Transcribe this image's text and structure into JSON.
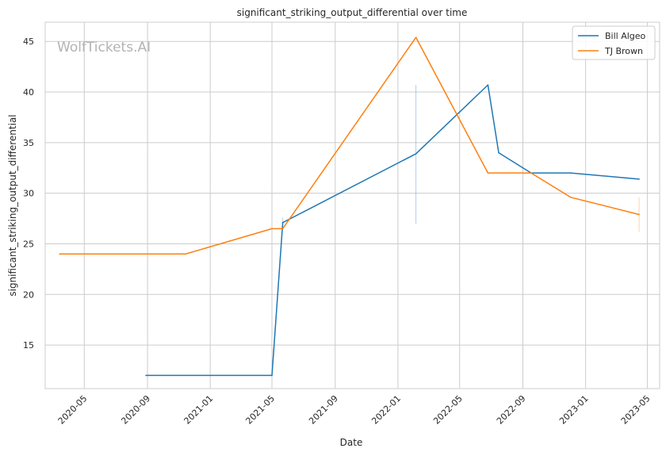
{
  "chart_data": {
    "type": "line",
    "title": "significant_striking_output_differential over time",
    "xlabel": "Date",
    "ylabel": "significant_striking_output_differential",
    "watermark": "WolfTickets.AI",
    "x_ticks": [
      "2020-05",
      "2020-09",
      "2021-01",
      "2021-05",
      "2021-09",
      "2022-01",
      "2022-05",
      "2022-09",
      "2023-01",
      "2023-05"
    ],
    "y_ticks": [
      15,
      20,
      25,
      30,
      35,
      40,
      45
    ],
    "xlim": [
      "2020-02-15",
      "2023-05-25"
    ],
    "ylim": [
      10.7,
      46.9
    ],
    "grid": true,
    "legend_position": "top-right",
    "series": [
      {
        "name": "Bill Algeo",
        "color": "#1f77b4",
        "points": [
          {
            "x": "2020-08-29",
            "y": 12.0
          },
          {
            "x": "2021-05-01",
            "y": 12.0
          },
          {
            "x": "2021-05-22",
            "y": 27.1
          },
          {
            "x": "2022-02-05",
            "y": 33.9
          },
          {
            "x": "2022-06-25",
            "y": 40.7
          },
          {
            "x": "2022-07-16",
            "y": 34.0
          },
          {
            "x": "2022-09-17",
            "y": 32.0
          },
          {
            "x": "2022-12-03",
            "y": 32.0
          },
          {
            "x": "2023-04-15",
            "y": 31.4
          }
        ],
        "error_bars": [
          {
            "x": "2021-05-22",
            "low": 26.6,
            "high": 27.6
          },
          {
            "x": "2022-02-05",
            "low": 27.0,
            "high": 40.7
          }
        ]
      },
      {
        "name": "TJ Brown",
        "color": "#ff7f0e",
        "points": [
          {
            "x": "2020-03-14",
            "y": 24.0
          },
          {
            "x": "2020-11-14",
            "y": 24.0
          },
          {
            "x": "2021-05-01",
            "y": 26.5
          },
          {
            "x": "2021-05-22",
            "y": 26.5
          },
          {
            "x": "2022-02-05",
            "y": 45.4
          },
          {
            "x": "2022-06-25",
            "y": 32.0
          },
          {
            "x": "2022-09-17",
            "y": 32.0
          },
          {
            "x": "2022-12-03",
            "y": 29.6
          },
          {
            "x": "2023-04-15",
            "y": 27.9
          }
        ],
        "error_bars": [
          {
            "x": "2023-04-15",
            "low": 26.2,
            "high": 29.6
          }
        ]
      }
    ]
  }
}
